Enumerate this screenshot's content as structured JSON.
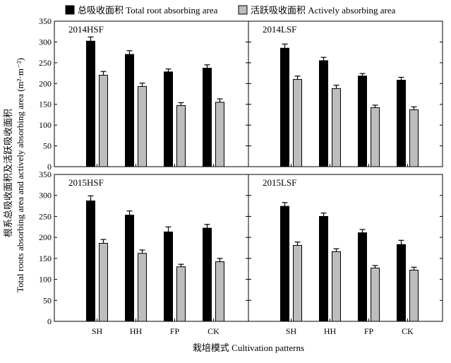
{
  "legend": [
    {
      "label": "总吸收面积 Total root absorbing area",
      "color": "#000000"
    },
    {
      "label": "活跃吸收面积 Actively absorbing area",
      "color": "#bdbdbd"
    }
  ],
  "ylabel_cn": "根系总吸收面积及活跃吸收面积",
  "ylabel_en": "Total roots absorbing area and actively absorbing area (m²·m⁻²)",
  "xlabel": "栽培模式 Cultivation patterns",
  "chart_data": [
    {
      "type": "bar",
      "title": "2014HSF",
      "categories": [
        "SH",
        "HH",
        "FP",
        "CK"
      ],
      "ylim": [
        0,
        350
      ],
      "yticks": [
        0,
        50,
        100,
        150,
        200,
        250,
        300,
        350
      ],
      "series": [
        {
          "name": "总吸收面积 Total root absorbing area",
          "values": [
            302,
            270,
            228,
            237
          ],
          "errors": [
            10,
            9,
            7,
            8
          ]
        },
        {
          "name": "活跃吸收面积 Actively absorbing area",
          "values": [
            220,
            193,
            147,
            155
          ],
          "errors": [
            9,
            8,
            7,
            8
          ]
        }
      ]
    },
    {
      "type": "bar",
      "title": "2014LSF",
      "categories": [
        "SH",
        "HH",
        "FP",
        "CK"
      ],
      "ylim": [
        0,
        350
      ],
      "yticks": [
        0,
        50,
        100,
        150,
        200,
        250,
        300,
        350
      ],
      "series": [
        {
          "name": "总吸收面积 Total root absorbing area",
          "values": [
            285,
            255,
            218,
            208
          ],
          "errors": [
            10,
            8,
            6,
            7
          ]
        },
        {
          "name": "活跃吸收面积 Actively absorbing area",
          "values": [
            210,
            188,
            142,
            137
          ],
          "errors": [
            8,
            8,
            6,
            7
          ]
        }
      ]
    },
    {
      "type": "bar",
      "title": "2015HSF",
      "categories": [
        "SH",
        "HH",
        "FP",
        "CK"
      ],
      "ylim": [
        0,
        350
      ],
      "yticks": [
        0,
        50,
        100,
        150,
        200,
        250,
        300,
        350
      ],
      "series": [
        {
          "name": "总吸收面积 Total root absorbing area",
          "values": [
            287,
            253,
            213,
            222
          ],
          "errors": [
            12,
            10,
            12,
            9
          ]
        },
        {
          "name": "活跃吸收面积 Actively absorbing area",
          "values": [
            186,
            162,
            130,
            142
          ],
          "errors": [
            9,
            8,
            6,
            8
          ]
        }
      ]
    },
    {
      "type": "bar",
      "title": "2015LSF",
      "categories": [
        "SH",
        "HH",
        "FP",
        "CK"
      ],
      "ylim": [
        0,
        350
      ],
      "yticks": [
        0,
        50,
        100,
        150,
        200,
        250,
        300,
        350
      ],
      "series": [
        {
          "name": "总吸收面积 Total root absorbing area",
          "values": [
            274,
            250,
            211,
            183
          ],
          "errors": [
            9,
            8,
            8,
            10
          ]
        },
        {
          "name": "活跃吸收面积 Actively absorbing area",
          "values": [
            181,
            166,
            127,
            122
          ],
          "errors": [
            8,
            7,
            6,
            7
          ]
        }
      ]
    }
  ]
}
